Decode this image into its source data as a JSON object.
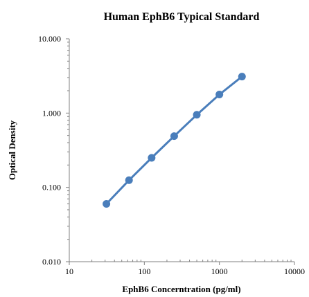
{
  "chart_data": {
    "type": "line",
    "title": "Human EphB6 Typical Standard",
    "xlabel": "EphB6 Concerntration (pg/ml)",
    "ylabel": "Optical Density",
    "x_scale": "log",
    "y_scale": "log",
    "xlim": [
      10,
      10000
    ],
    "ylim": [
      0.01,
      10
    ],
    "x_ticks": [
      "10",
      "100",
      "1000",
      "10000"
    ],
    "y_ticks": [
      "0.010",
      "0.100",
      "1.000",
      "10.000"
    ],
    "grid": false,
    "legend": "none",
    "series": [
      {
        "color": "#4a7ebb",
        "marker": "circle",
        "x": [
          31.25,
          62.5,
          125,
          250,
          500,
          1000,
          2000
        ],
        "y": [
          0.06,
          0.125,
          0.25,
          0.49,
          0.95,
          1.78,
          3.1
        ]
      }
    ]
  }
}
